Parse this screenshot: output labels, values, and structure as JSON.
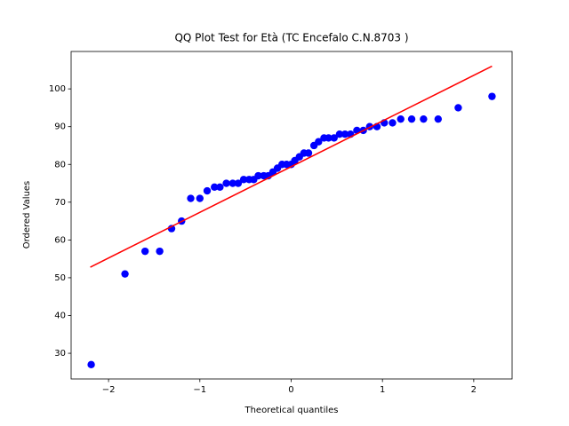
{
  "chart_data": {
    "type": "scatter",
    "title": "QQ Plot Test for Età (TC Encefalo C.N.8703 )",
    "xlabel": "Theoretical quantiles",
    "ylabel": "Ordered Values",
    "xlim": [
      -2.41,
      2.42
    ],
    "ylim": [
      23.2,
      109.9
    ],
    "xticks": [
      {
        "value": -2,
        "label": "−2"
      },
      {
        "value": -1,
        "label": "−1"
      },
      0,
      1,
      2
    ],
    "yticks": [
      30,
      40,
      50,
      60,
      70,
      80,
      90,
      100
    ],
    "grid": false,
    "series": [
      {
        "kind": "scatter",
        "color": "#0000ff",
        "x": [
          -2.19,
          -1.82,
          -1.6,
          -1.44,
          -1.31,
          -1.2,
          -1.1,
          -1.0,
          -0.92,
          -0.84,
          -0.78,
          -0.71,
          -0.64,
          -0.58,
          -0.52,
          -0.46,
          -0.41,
          -0.36,
          -0.3,
          -0.25,
          -0.2,
          -0.15,
          -0.1,
          -0.05,
          0.0,
          0.04,
          0.09,
          0.14,
          0.19,
          0.25,
          0.3,
          0.36,
          0.41,
          0.47,
          0.53,
          0.59,
          0.65,
          0.72,
          0.79,
          0.86,
          0.94,
          1.02,
          1.11,
          1.2,
          1.32,
          1.45,
          1.61,
          1.83,
          2.2
        ],
        "values": [
          27,
          51,
          57,
          57,
          63,
          65,
          71,
          71,
          73,
          74,
          74,
          75,
          75,
          75,
          76,
          76,
          76,
          77,
          77,
          77,
          78,
          79,
          80,
          80,
          80,
          81,
          82,
          83,
          83,
          85,
          86,
          87,
          87,
          87,
          88,
          88,
          88,
          89,
          89,
          90,
          90,
          91,
          91,
          92,
          92,
          92,
          92,
          95,
          98
        ]
      },
      {
        "kind": "line",
        "color": "#ff0000",
        "x": [
          -2.2,
          2.2
        ],
        "values": [
          52.8,
          106
        ]
      }
    ]
  }
}
